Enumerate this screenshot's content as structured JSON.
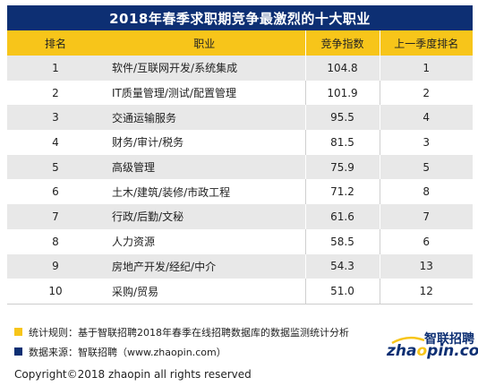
{
  "title": "2018年春季求职期竞争最激烈的十大职业",
  "table": {
    "headers": [
      "排名",
      "职业",
      "竞争指数",
      "上一季度排名"
    ],
    "rows": [
      {
        "rank": "1",
        "job": "软件/互联网开发/系统集成",
        "index": "104.8",
        "prev": "1"
      },
      {
        "rank": "2",
        "job": "IT质量管理/测试/配置管理",
        "index": "101.9",
        "prev": "2"
      },
      {
        "rank": "3",
        "job": "交通运输服务",
        "index": "95.5",
        "prev": "4"
      },
      {
        "rank": "4",
        "job": "财务/审计/税务",
        "index": "81.5",
        "prev": "3"
      },
      {
        "rank": "5",
        "job": "高级管理",
        "index": "75.9",
        "prev": "5"
      },
      {
        "rank": "6",
        "job": "土木/建筑/装修/市政工程",
        "index": "71.2",
        "prev": "8"
      },
      {
        "rank": "7",
        "job": "行政/后勤/文秘",
        "index": "61.6",
        "prev": "7"
      },
      {
        "rank": "8",
        "job": "人力资源",
        "index": "58.5",
        "prev": "6"
      },
      {
        "rank": "9",
        "job": "房地产开发/经纪/中介",
        "index": "54.3",
        "prev": "13"
      },
      {
        "rank": "10",
        "job": "采购/贸易",
        "index": "51.0",
        "prev": "12"
      }
    ]
  },
  "notes": [
    {
      "text": "统计规则：基于智联招聘2018年春季在线招聘数据库的数据监测统计分析",
      "color": "#f7c51a"
    },
    {
      "text": "数据来源：智联招聘（www.zhaopin.com）",
      "color": "#0d2f73"
    }
  ],
  "logo": {
    "cn": "智联招聘",
    "en_pre": "zha",
    "en_o": "o",
    "en_post": "pin.com",
    "icon": "zhaopin-logo"
  },
  "copyright": "Copyright©2018 zhaopin all rights reserved",
  "colors": {
    "title_bg": "#0d2f73",
    "header_bg": "#f7c51a",
    "odd_row": "#e8e8e8",
    "even_row": "#ffffff"
  }
}
